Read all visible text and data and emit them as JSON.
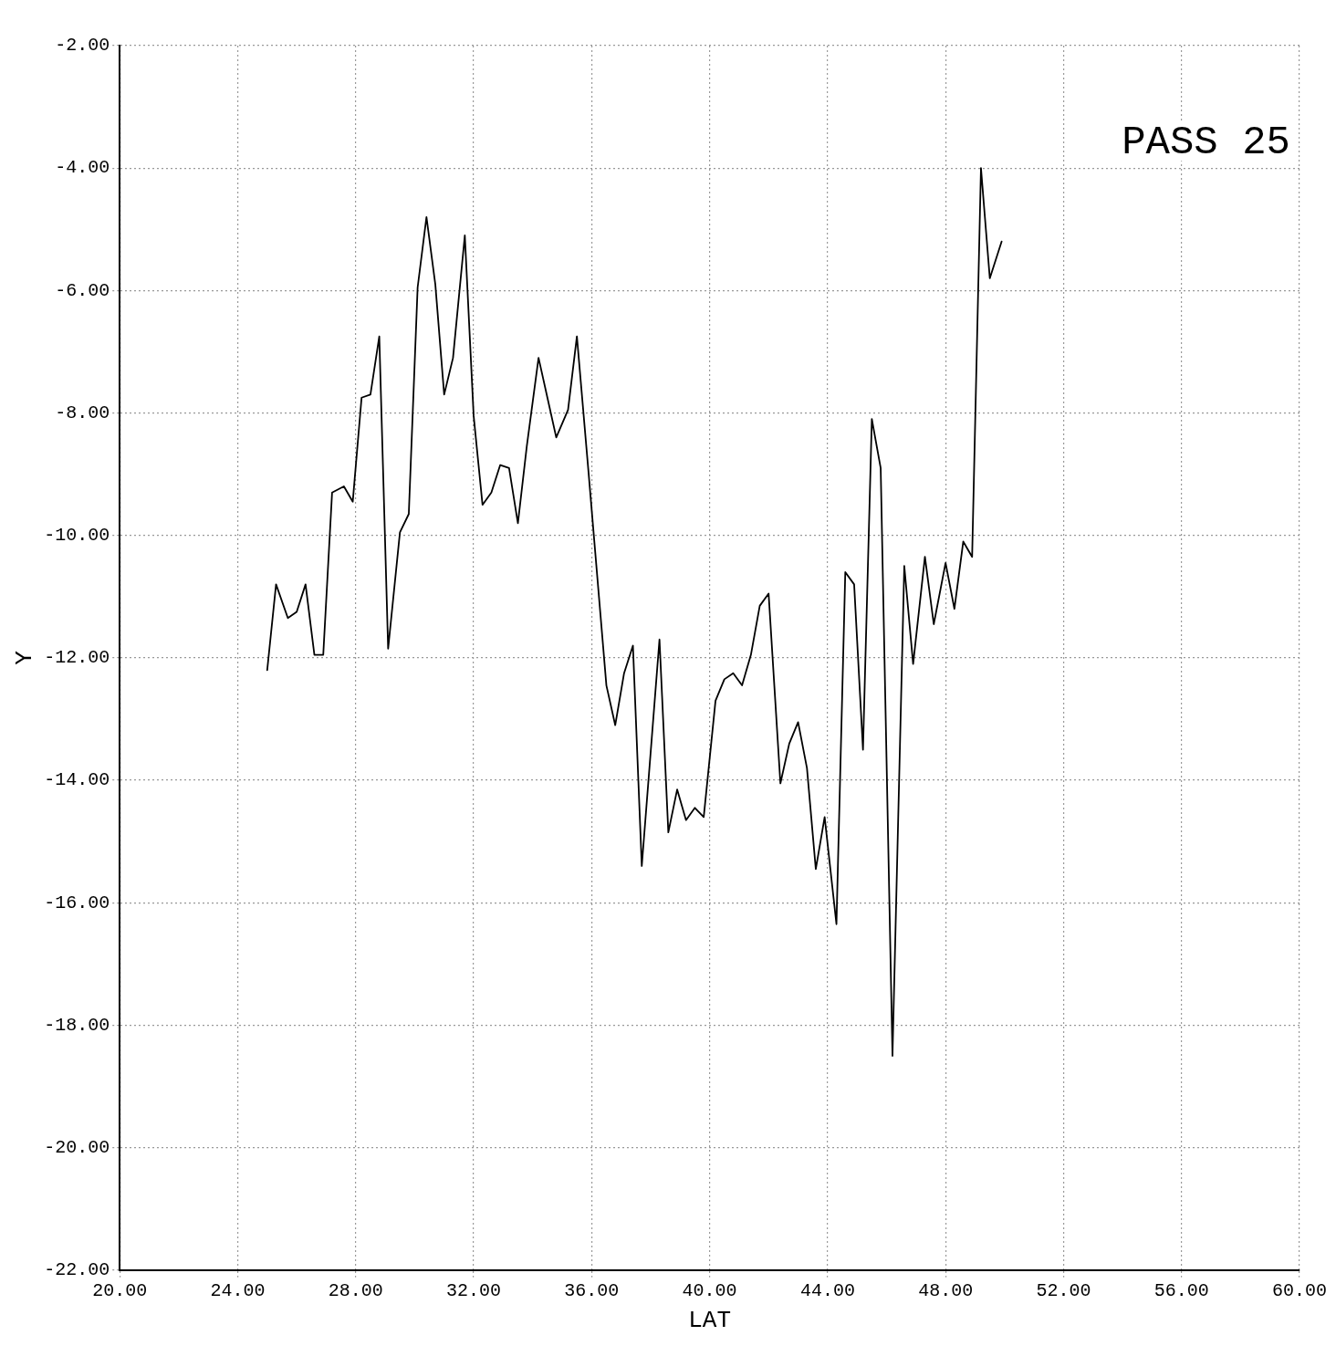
{
  "chart_data": {
    "type": "line",
    "xlabel": "LAT",
    "ylabel": "Y",
    "annotations": [
      "PASS 25"
    ],
    "xlim": [
      20,
      60
    ],
    "ylim": [
      -22,
      -2
    ],
    "xticks": [
      {
        "value": 20,
        "label": "20.00"
      },
      {
        "value": 24,
        "label": "24.00"
      },
      {
        "value": 28,
        "label": "28.00"
      },
      {
        "value": 32,
        "label": "32.00"
      },
      {
        "value": 36,
        "label": "36.00"
      },
      {
        "value": 40,
        "label": "40.00"
      },
      {
        "value": 44,
        "label": "44.00"
      },
      {
        "value": 48,
        "label": "48.00"
      },
      {
        "value": 52,
        "label": "52.00"
      },
      {
        "value": 56,
        "label": "56.00"
      },
      {
        "value": 60,
        "label": "60.00"
      }
    ],
    "yticks": [
      {
        "value": -22,
        "label": "-22.00"
      },
      {
        "value": -20,
        "label": "-20.00"
      },
      {
        "value": -18,
        "label": "-18.00"
      },
      {
        "value": -16,
        "label": "-16.00"
      },
      {
        "value": -14,
        "label": "-14.00"
      },
      {
        "value": -12,
        "label": "-12.00"
      },
      {
        "value": -10,
        "label": "-10.00"
      },
      {
        "value": -8,
        "label": "-8.00"
      },
      {
        "value": -6,
        "label": "-6.00"
      },
      {
        "value": -4,
        "label": "-4.00"
      },
      {
        "value": -2,
        "label": "-2.00"
      }
    ],
    "grid": true,
    "marker": "none",
    "line_style": "solid",
    "series": [
      {
        "color": "#000000",
        "x": [
          25.0,
          25.3,
          25.7,
          26.0,
          26.3,
          26.6,
          26.9,
          27.2,
          27.6,
          27.9,
          28.2,
          28.5,
          28.8,
          29.1,
          29.5,
          29.8,
          30.1,
          30.4,
          30.7,
          31.0,
          31.3,
          31.7,
          32.0,
          32.3,
          32.6,
          32.9,
          33.2,
          33.5,
          33.8,
          34.2,
          34.5,
          34.8,
          35.2,
          35.5,
          35.9,
          36.5,
          36.8,
          37.1,
          37.4,
          37.7,
          38.3,
          38.6,
          38.9,
          39.2,
          39.5,
          39.8,
          40.2,
          40.5,
          40.8,
          41.1,
          41.4,
          41.7,
          42.0,
          42.4,
          42.7,
          43.0,
          43.3,
          43.6,
          43.9,
          44.3,
          44.6,
          44.9,
          45.2,
          45.5,
          45.8,
          46.2,
          46.6,
          46.9,
          47.3,
          47.6,
          48.0,
          48.3,
          48.6,
          48.9,
          49.2,
          49.5,
          49.9
        ],
        "values": [
          -12.2,
          -10.8,
          -11.35,
          -11.25,
          -10.8,
          -11.95,
          -11.95,
          -9.3,
          -9.2,
          -9.45,
          -7.75,
          -7.7,
          -6.75,
          -11.85,
          -9.95,
          -9.65,
          -5.95,
          -4.8,
          -5.9,
          -7.7,
          -7.1,
          -5.1,
          -8.05,
          -9.5,
          -9.3,
          -8.85,
          -8.9,
          -9.8,
          -8.55,
          -7.1,
          -7.75,
          -8.4,
          -7.95,
          -6.75,
          -9.0,
          -12.45,
          -13.1,
          -12.25,
          -11.8,
          -15.4,
          -11.7,
          -14.85,
          -14.15,
          -14.65,
          -14.45,
          -14.6,
          -12.7,
          -12.35,
          -12.25,
          -12.45,
          -11.95,
          -11.15,
          -10.95,
          -14.05,
          -13.4,
          -13.05,
          -13.8,
          -15.45,
          -14.6,
          -16.35,
          -10.6,
          -10.8,
          -13.5,
          -8.1,
          -8.9,
          -18.5,
          -10.5,
          -12.1,
          -10.35,
          -11.45,
          -10.45,
          -11.2,
          -10.1,
          -10.35,
          -4.0,
          -5.8,
          -5.2
        ]
      }
    ]
  }
}
